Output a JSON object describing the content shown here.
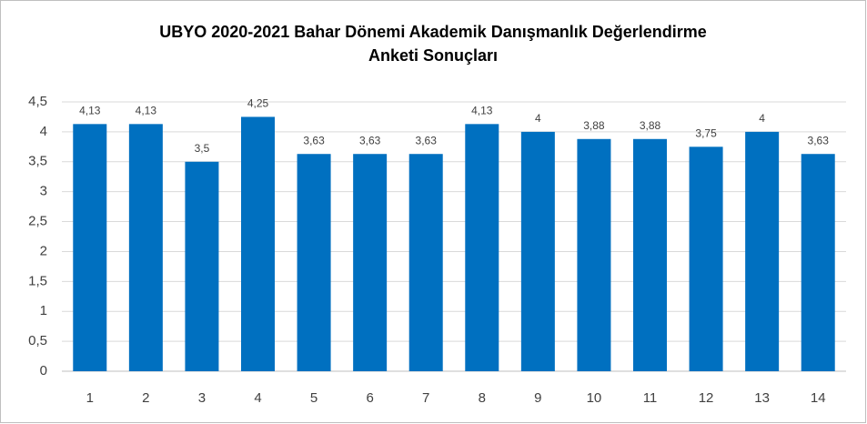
{
  "chart_data": {
    "type": "bar",
    "title": "UBYO 2020-2021 Bahar Dönemi Akademik Danışmanlık Değerlendirme Anketi Sonuçları",
    "categories": [
      "1",
      "2",
      "3",
      "4",
      "5",
      "6",
      "7",
      "8",
      "9",
      "10",
      "11",
      "12",
      "13",
      "14"
    ],
    "values": [
      4.13,
      4.13,
      3.5,
      4.25,
      3.63,
      3.63,
      3.63,
      4.13,
      4,
      3.88,
      3.88,
      3.75,
      4,
      3.63
    ],
    "value_labels": [
      "4,13",
      "4,13",
      "3,5",
      "4,25",
      "3,63",
      "3,63",
      "3,63",
      "4,13",
      "4",
      "3,88",
      "3,88",
      "3,75",
      "4",
      "3,63"
    ],
    "color": "#0070c0",
    "ylim": [
      0,
      4.5
    ],
    "yticks": [
      0,
      {
        "value": 0.5,
        "label": "0,5"
      },
      1,
      {
        "value": 1.5,
        "label": "1,5"
      },
      2,
      {
        "value": 2.5,
        "label": "2,5"
      },
      3,
      {
        "value": 3.5,
        "label": "3,5"
      },
      4,
      {
        "value": 4.5,
        "label": "4,5"
      }
    ],
    "grid": true
  }
}
